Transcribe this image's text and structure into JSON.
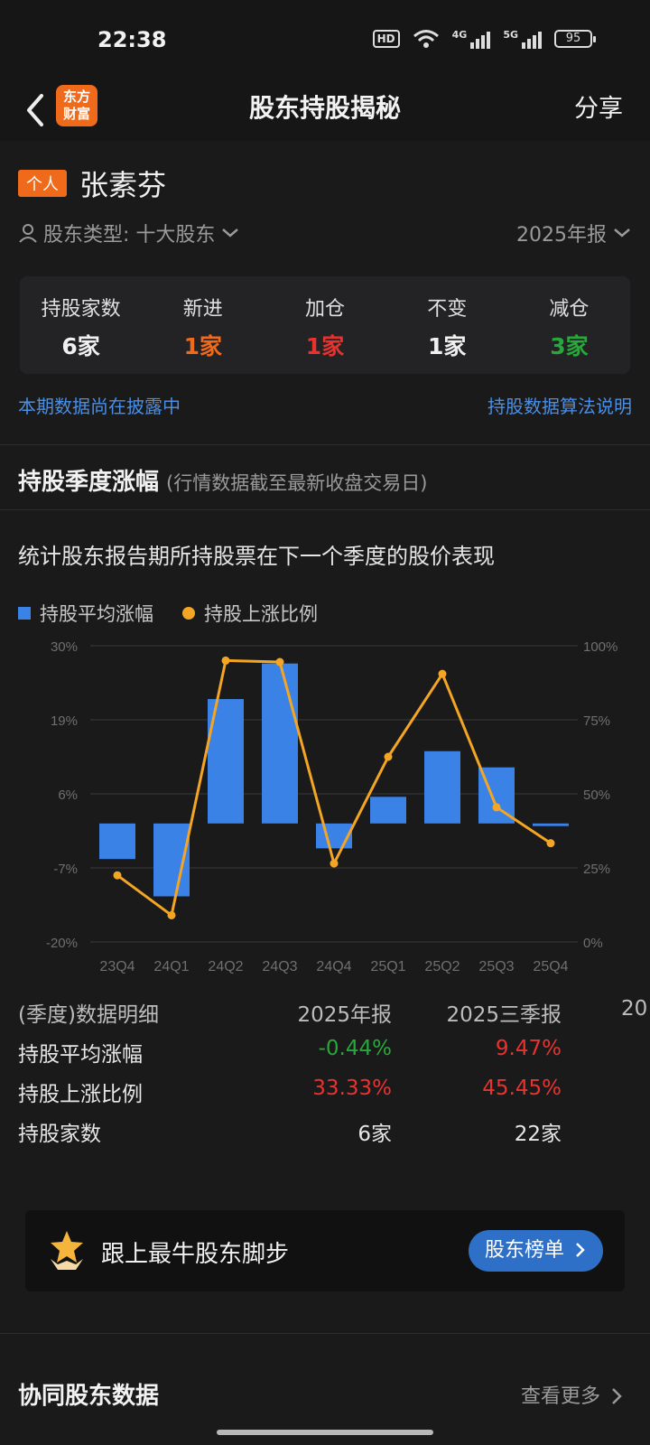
{
  "status": {
    "time": "22:38",
    "battery": "95",
    "net1": "4G",
    "net2": "5G",
    "hd": "HD"
  },
  "nav": {
    "logo_line1": "东方",
    "logo_line2": "财富",
    "title": "股东持股揭秘",
    "share": "分享"
  },
  "holder": {
    "tag": "个人",
    "name": "张素芬",
    "type_label": "股东类型: 十大股东",
    "period": "2025年报"
  },
  "stats": [
    {
      "label": "持股家数",
      "value": "6家",
      "color": "#f0f0f0"
    },
    {
      "label": "新进",
      "value": "1家",
      "color": "#f06a1c"
    },
    {
      "label": "加仓",
      "value": "1家",
      "color": "#e8322f"
    },
    {
      "label": "不变",
      "value": "1家",
      "color": "#f0f0f0"
    },
    {
      "label": "减仓",
      "value": "3家",
      "color": "#26a83a"
    }
  ],
  "links": {
    "left": "本期数据尚在披露中",
    "right": "持股数据算法说明"
  },
  "section": {
    "title": "持股季度涨幅",
    "subtitle": "(行情数据截至最新收盘交易日)"
  },
  "chart_desc": "统计股东报告期所持股票在下一个季度的股价表现",
  "chart_data": {
    "type": "bar",
    "categories": [
      "23Q4",
      "24Q1",
      "24Q2",
      "24Q3",
      "24Q4",
      "25Q1",
      "25Q2",
      "25Q3",
      "25Q4"
    ],
    "series": [
      {
        "name": "持股平均涨幅",
        "kind": "bar",
        "axis": "left",
        "color": "#3b82e6",
        "values": [
          -6.0,
          -12.3,
          21.0,
          27.0,
          -4.2,
          4.5,
          12.2,
          9.47,
          -0.44
        ]
      },
      {
        "name": "持股上涨比例",
        "kind": "line",
        "axis": "right",
        "color": "#f4a524",
        "values": [
          22.5,
          9.0,
          95.0,
          94.5,
          26.5,
          62.5,
          90.5,
          45.45,
          33.33
        ]
      }
    ],
    "y_left": {
      "ticks": [
        "30%",
        "19%",
        "6%",
        "-7%",
        "-20%"
      ],
      "range": [
        -20,
        30
      ]
    },
    "y_right": {
      "ticks": [
        "100%",
        "75%",
        "50%",
        "25%",
        "0%"
      ],
      "range": [
        0,
        100
      ]
    },
    "grid": true,
    "legend": "top-left"
  },
  "detail": {
    "header": [
      "(季度)数据明细",
      "2025年报",
      "2025三季报",
      "20"
    ],
    "rows": [
      {
        "label": "持股平均涨幅",
        "v1": "-0.44%",
        "v2": "9.47%",
        "c1": "#26a83a",
        "c2": "#e8322f"
      },
      {
        "label": "持股上涨比例",
        "v1": "33.33%",
        "v2": "45.45%",
        "c1": "#e8322f",
        "c2": "#e8322f"
      },
      {
        "label": "持股家数",
        "v1": "6家",
        "v2": "22家",
        "c1": "#e6e6e6",
        "c2": "#e6e6e6"
      }
    ]
  },
  "promo": {
    "text": "跟上最牛股东脚步",
    "button": "股东榜单"
  },
  "coop": {
    "title": "协同股东数据",
    "more": "查看更多"
  }
}
